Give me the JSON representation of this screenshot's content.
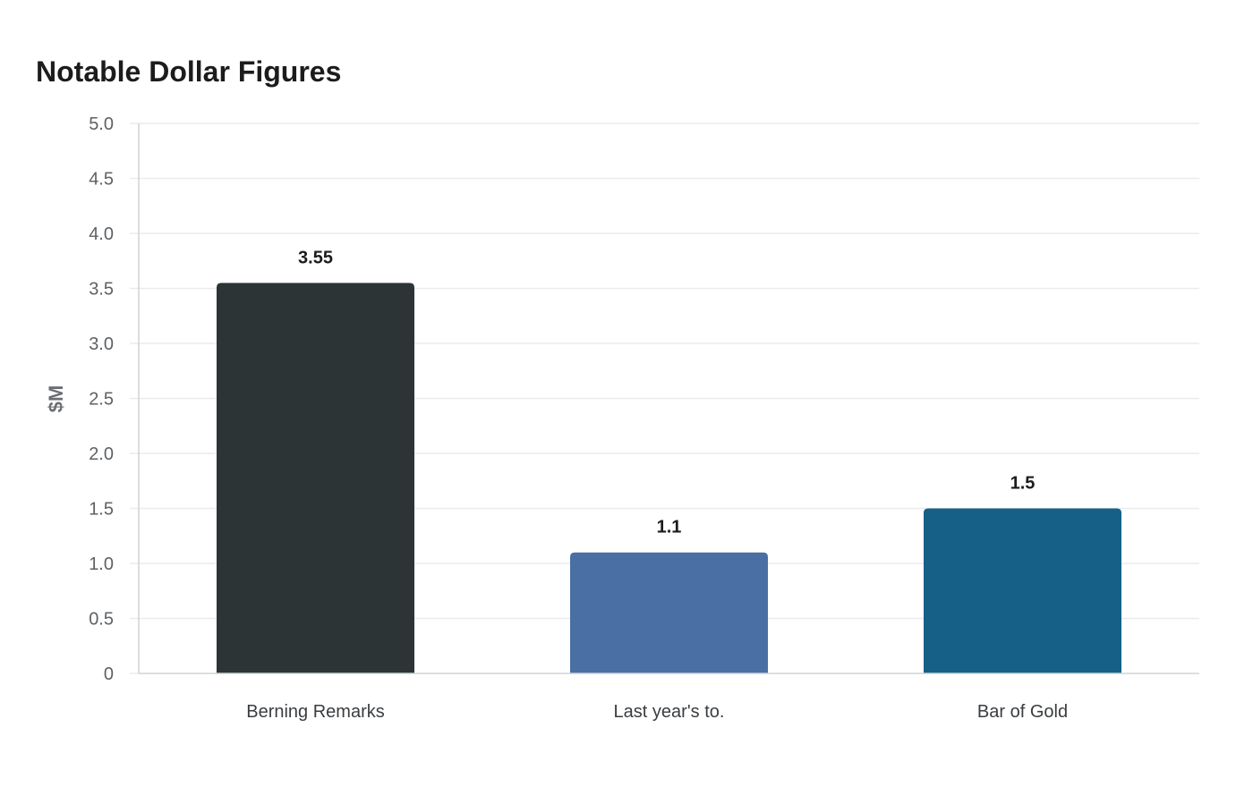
{
  "chart_data": {
    "type": "bar",
    "title": "Notable Dollar Figures",
    "xlabel": "",
    "ylabel": "$M",
    "categories": [
      "Berning Remarks",
      "Last year's to.",
      "Bar of Gold"
    ],
    "values": [
      3.55,
      1.1,
      1.5
    ],
    "data_labels": [
      "3.55",
      "1.1",
      "1.5"
    ],
    "colors": [
      "#2d3436",
      "#4a6fa5",
      "#166088"
    ],
    "ylim": [
      0,
      5
    ],
    "yticks": [
      0,
      0.5,
      1.0,
      1.5,
      2.0,
      2.5,
      3.0,
      3.5,
      4.0,
      4.5,
      5.0
    ],
    "ytick_labels": [
      "0",
      "0.5",
      "1.0",
      "1.5",
      "2.0",
      "2.5",
      "3.0",
      "3.5",
      "4.0",
      "4.5",
      "5.0"
    ],
    "grid": true,
    "legend": "none",
    "grid_color": "#e9ebed",
    "axis_color": "#cfd3d6"
  }
}
